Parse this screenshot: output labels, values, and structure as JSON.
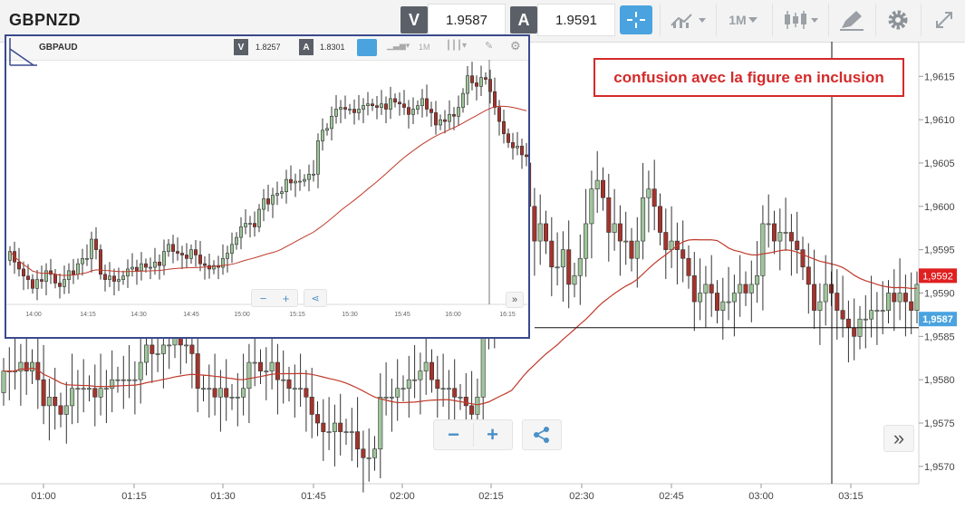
{
  "toolbar": {
    "symbol": "GBPNZD",
    "sell_badge": "V",
    "sell_price": "1.9587",
    "buy_badge": "A",
    "buy_price": "1.9591",
    "timeframe": "1M"
  },
  "annotation": "confusion avec la figure en inclusion",
  "main_controls": {
    "minus": "−",
    "plus": "+",
    "expand": "»"
  },
  "inset": {
    "symbol": "GBPAUD",
    "sell_badge": "V",
    "sell_price": "1.8257",
    "buy_badge": "A",
    "buy_price": "1.8301",
    "timeframe": "1M",
    "controls": {
      "minus": "−",
      "plus": "+",
      "expand": "»"
    },
    "x_ticks": [
      "14:00",
      "14:15",
      "14:30",
      "14:45",
      "15:00",
      "15:15",
      "15:30",
      "15:45",
      "16:00",
      "16:15"
    ]
  },
  "colors": {
    "bull": "#9fc59b",
    "bear": "#a3342c",
    "ma": "#c0392b",
    "accent": "#4aa3df",
    "annotation": "#d42a2a",
    "inset_border": "#3a4a8c"
  },
  "chart_data": [
    {
      "type": "candlestick",
      "title": "GBPNZD",
      "ylim": [
        1.9568,
        1.9619
      ],
      "y_ticks": [
        "1,9570",
        "1,9575",
        "1,9580",
        "1,9585",
        "1,9590",
        "1,9595",
        "1,9600",
        "1,9605",
        "1,9610",
        "1,9615"
      ],
      "x_ticks": [
        "01:00",
        "01:15",
        "01:30",
        "01:45",
        "02:00",
        "02:15",
        "02:30",
        "02:45",
        "03:00",
        "03:15"
      ],
      "price_labels": {
        "moving_average": "1,9592",
        "current": "1,9587"
      },
      "crosshair_price": 1.9586,
      "closes": [
        1.9581,
        1.9581,
        1.9581,
        1.9582,
        1.9581,
        1.9582,
        1.958,
        1.9577,
        1.9578,
        1.9577,
        1.9576,
        1.9577,
        1.9579,
        1.9579,
        1.9579,
        1.9579,
        1.9578,
        1.9579,
        1.9579,
        1.958,
        1.958,
        1.958,
        1.958,
        1.958,
        1.9582,
        1.9584,
        1.9583,
        1.9583,
        1.9584,
        1.9584,
        1.9585,
        1.9584,
        1.9584,
        1.9583,
        1.9579,
        1.9579,
        1.9579,
        1.9578,
        1.9579,
        1.9578,
        1.9578,
        1.9578,
        1.9579,
        1.9582,
        1.9582,
        1.9581,
        1.9581,
        1.9582,
        1.958,
        1.958,
        1.9579,
        1.9579,
        1.9579,
        1.9578,
        1.9576,
        1.9575,
        1.9574,
        1.9574,
        1.9575,
        1.9574,
        1.9574,
        1.9574,
        1.9572,
        1.9571,
        1.9571,
        1.9572,
        1.9578,
        1.9578,
        1.9578,
        1.9579,
        1.9579,
        1.958,
        1.958,
        1.9581,
        1.9582,
        1.958,
        1.9579,
        1.9579,
        1.9579,
        1.9578,
        1.9578,
        1.9577,
        1.9576,
        1.9578,
        1.9585,
        1.9587,
        1.9591,
        1.9591,
        1.959,
        1.9591,
        1.9604,
        1.9605,
        1.96,
        1.9596,
        1.9598,
        1.9596,
        1.9593,
        1.9593,
        1.9595,
        1.9591,
        1.9592,
        1.9594,
        1.9598,
        1.9602,
        1.9603,
        1.9601,
        1.9597,
        1.9598,
        1.9596,
        1.9596,
        1.9594,
        1.9596,
        1.9601,
        1.9602,
        1.96,
        1.9597,
        1.9595,
        1.9596,
        1.9595,
        1.9594,
        1.9592,
        1.9589,
        1.959,
        1.9591,
        1.959,
        1.9588,
        1.9589,
        1.9589,
        1.959,
        1.9591,
        1.959,
        1.9591,
        1.9592,
        1.9598,
        1.9598,
        1.9596,
        1.9597,
        1.9597,
        1.9596,
        1.9595,
        1.9593,
        1.9591,
        1.9588,
        1.9589,
        1.9591,
        1.959,
        1.9588,
        1.9587,
        1.9586,
        1.9585,
        1.9587,
        1.9587,
        1.9588,
        1.9588,
        1.9588,
        1.959,
        1.9589,
        1.959,
        1.9589,
        1.9588,
        1.9591
      ]
    },
    {
      "type": "candlestick",
      "title": "GBPAUD",
      "closes": [
        1.8205,
        1.8199,
        1.8195,
        1.8191,
        1.8189,
        1.8184,
        1.8189,
        1.8188,
        1.8194,
        1.8192,
        1.8187,
        1.8185,
        1.8189,
        1.8194,
        1.8192,
        1.8198,
        1.8201,
        1.8201,
        1.8212,
        1.8206,
        1.8192,
        1.8189,
        1.8191,
        1.8188,
        1.8189,
        1.8191,
        1.8195,
        1.8196,
        1.8194,
        1.8198,
        1.8196,
        1.8196,
        1.8199,
        1.8197,
        1.8205,
        1.8209,
        1.8205,
        1.8204,
        1.8203,
        1.8201,
        1.8206,
        1.8203,
        1.8198,
        1.8197,
        1.8195,
        1.8197,
        1.8196,
        1.8201,
        1.8204,
        1.8209,
        1.8213,
        1.8219,
        1.8221,
        1.8221,
        1.8219,
        1.8229,
        1.8235,
        1.8232,
        1.8237,
        1.8238,
        1.8239,
        1.8246,
        1.8244,
        1.8245,
        1.8245,
        1.8246,
        1.8249,
        1.8249,
        1.8268,
        1.8274,
        1.8275,
        1.8282,
        1.8286,
        1.8287,
        1.8286,
        1.8286,
        1.8284,
        1.8286,
        1.8288,
        1.8289,
        1.8288,
        1.8287,
        1.8289,
        1.8286,
        1.8292,
        1.829,
        1.8289,
        1.8287,
        1.8283,
        1.8286,
        1.8288,
        1.8292,
        1.8286,
        1.8284,
        1.8277,
        1.828,
        1.8279,
        1.8283,
        1.8282,
        1.8287,
        1.8295,
        1.8305,
        1.8301,
        1.8299,
        1.8304,
        1.8303,
        1.8296,
        1.8287,
        1.8279,
        1.8272,
        1.8267,
        1.8264,
        1.8265,
        1.826,
        1.8259
      ]
    }
  ]
}
